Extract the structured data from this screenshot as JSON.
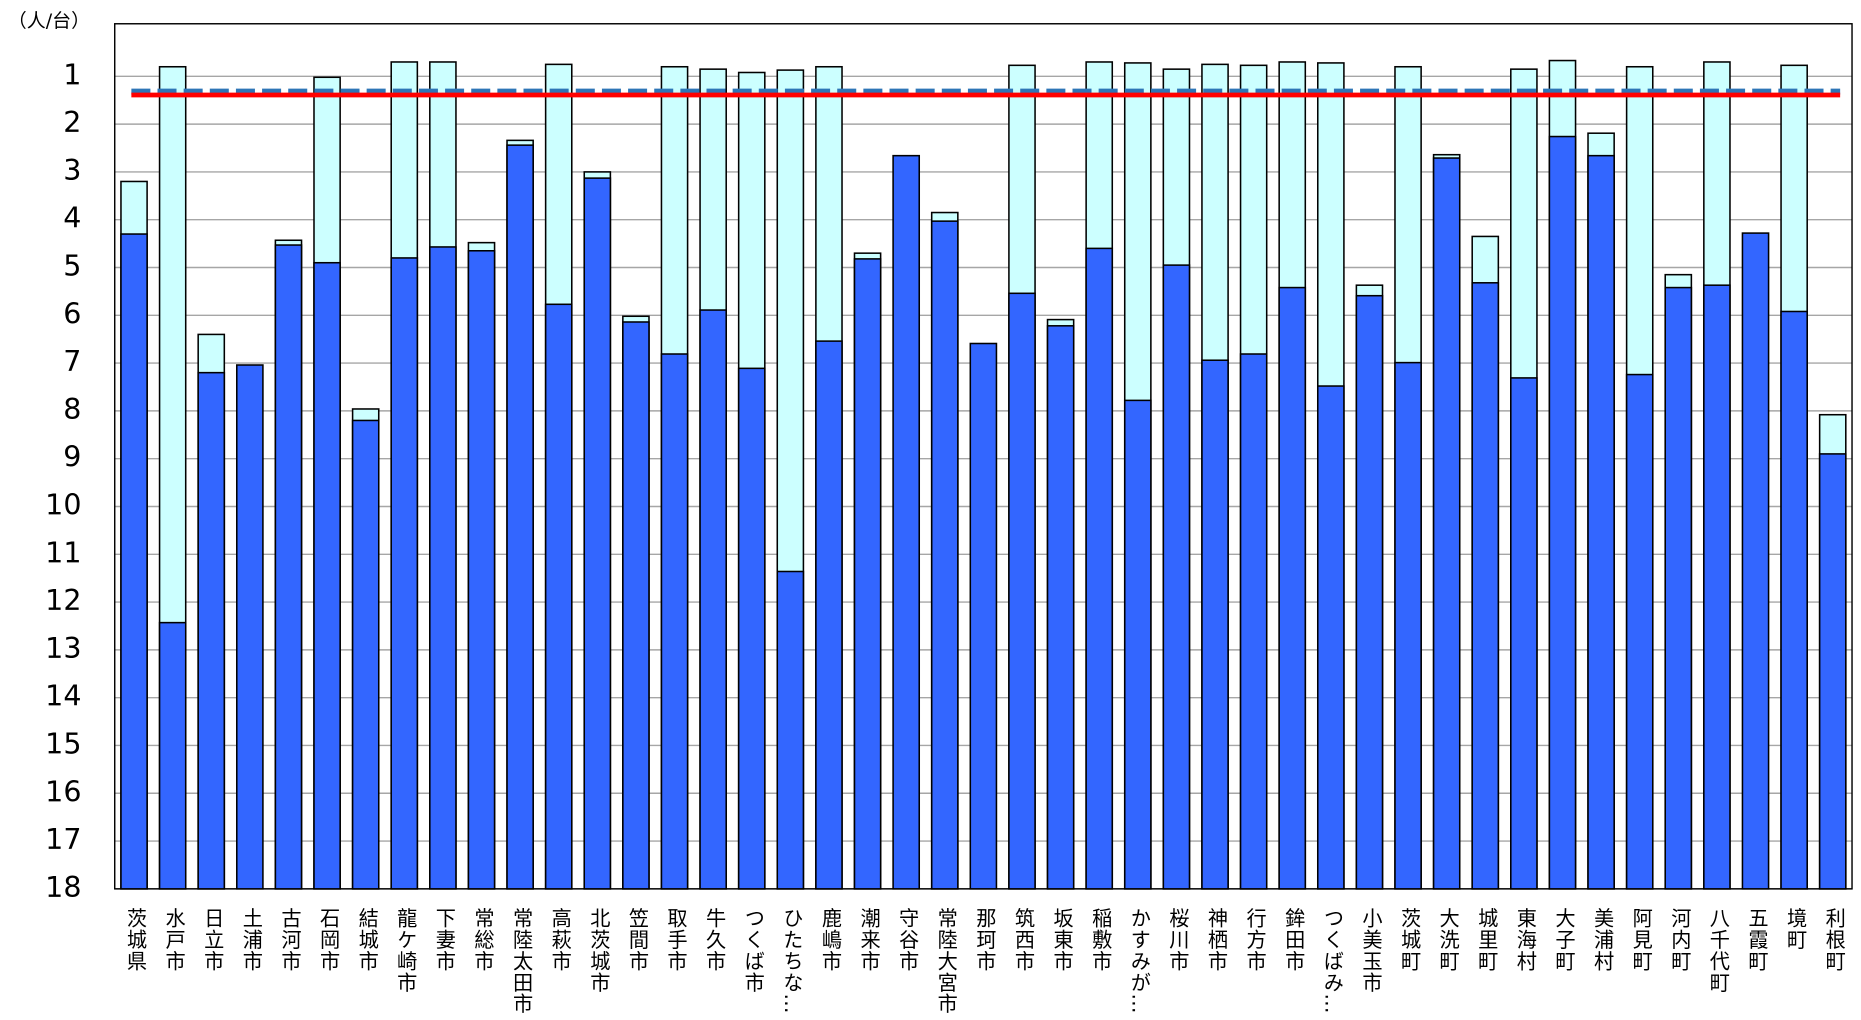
{
  "chart_data": {
    "type": "bar",
    "unit_label": "（人/台）",
    "categories": [
      "茨城県",
      "水戸市",
      "日立市",
      "土浦市",
      "古河市",
      "石岡市",
      "結城市",
      "龍ケ崎市",
      "下妻市",
      "常総市",
      "常陸太田市",
      "高萩市",
      "北茨城市",
      "笠間市",
      "取手市",
      "牛久市",
      "つくば市",
      "ひたちな…",
      "鹿嶋市",
      "潮来市",
      "守谷市",
      "常陸大宮市",
      "那珂市",
      "筑西市",
      "坂東市",
      "稲敷市",
      "かすみが…",
      "桜川市",
      "神栖市",
      "行方市",
      "鉾田市",
      "つくばみ…",
      "小美玉市",
      "茨城町",
      "大洗町",
      "城里町",
      "東海村",
      "大子町",
      "美浦村",
      "阿見町",
      "河内町",
      "八千代町",
      "五霞町",
      "境町",
      "利根町"
    ],
    "series": [
      {
        "color": "#ccffff",
        "values": [
          3.2,
          0.8,
          6.4,
          null,
          4.43,
          1.02,
          7.96,
          0.7,
          0.7,
          4.48,
          2.34,
          0.75,
          3.0,
          6.02,
          0.8,
          0.85,
          0.92,
          0.87,
          0.8,
          4.7,
          null,
          3.85,
          null,
          0.77,
          6.09,
          0.7,
          0.72,
          0.85,
          0.75,
          0.77,
          0.7,
          0.72,
          5.37,
          0.8,
          2.64,
          4.35,
          0.85,
          0.67,
          2.19,
          0.8,
          5.15,
          0.7,
          null,
          0.77,
          8.08
        ]
      },
      {
        "color": "#3366ff",
        "values": [
          4.3,
          12.43,
          7.2,
          7.04,
          4.53,
          4.9,
          8.2,
          4.8,
          4.57,
          4.65,
          2.44,
          5.77,
          3.13,
          6.14,
          6.81,
          5.89,
          7.11,
          11.36,
          6.54,
          4.82,
          2.66,
          4.03,
          6.59,
          5.54,
          6.22,
          4.6,
          7.78,
          4.95,
          6.94,
          6.81,
          5.42,
          7.48,
          5.59,
          6.99,
          2.71,
          5.32,
          7.31,
          2.26,
          2.66,
          7.24,
          5.42,
          5.37,
          4.28,
          5.92,
          8.9
        ]
      }
    ],
    "reference_lines": [
      {
        "color": "#2e75b6",
        "style": "dashed",
        "value": 1.32
      },
      {
        "color": "#ff0000",
        "style": "solid",
        "value": 1.39
      }
    ],
    "ylim": [
      0,
      18
    ],
    "y_reversed": true,
    "yticks": [
      1,
      2,
      3,
      4,
      5,
      6,
      7,
      8,
      9,
      10,
      11,
      12,
      13,
      14,
      15,
      16,
      17,
      18
    ],
    "grid": true
  }
}
